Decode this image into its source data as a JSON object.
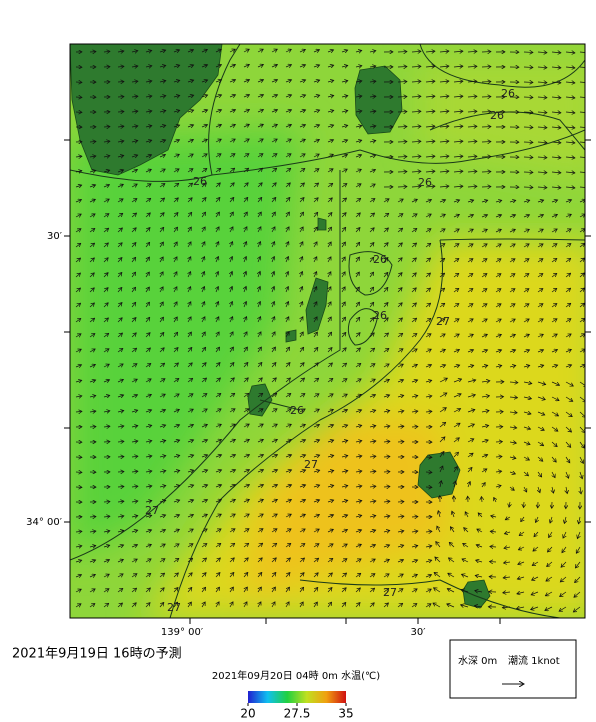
{
  "title": "2021年9月19日 16時の予測",
  "subtitle": "2021年09月20日 04時 0m 水温(℃)",
  "axes": {
    "lat_labels": [
      "30′",
      "34° 00′"
    ],
    "lon_labels": [
      "139° 00′",
      "30′"
    ]
  },
  "colorbar": {
    "range": [
      20,
      35
    ],
    "ticks": [
      20,
      27.5,
      35
    ]
  },
  "contour_labels": [
    26,
    26,
    26,
    26,
    26,
    26,
    26,
    27,
    27,
    27,
    27,
    27
  ],
  "legend": {
    "depth": "水深 0m",
    "current": "潮流 1knot"
  }
}
